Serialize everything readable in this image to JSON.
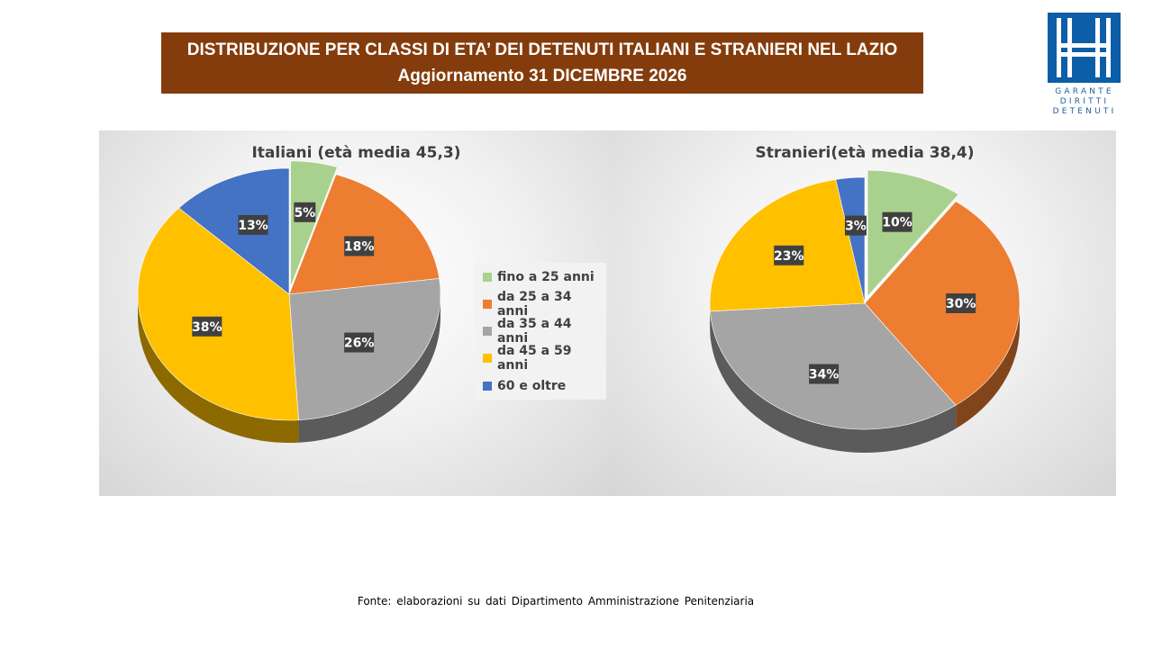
{
  "header": {
    "title_line1": "DISTRIBUZIONE PER CLASSI DI ETA’ DEI DETENUTI ITALIANI E STRANIERI NEL LAZIO",
    "title_line2": "Aggiornamento 31 DICEMBRE 2026"
  },
  "logo": {
    "line1": "GARANTE",
    "line2": "DIRITTI",
    "line3": "DETENUTI",
    "color": "#0d5ea8"
  },
  "colors": {
    "fino a 25 anni": "#a9d18e",
    "da 25 a 34 anni": "#ed7d31",
    "da 35 a 44 anni": "#a5a5a5",
    "da 45 a 59 anni": "#ffc000",
    "60 e oltre": "#4472c4"
  },
  "chart_data": [
    {
      "type": "pie",
      "title": "Italiani (età media 45,3)",
      "categories": [
        "fino a 25 anni",
        "da 25 a 34 anni",
        "da 35 a 44 anni",
        "da 45 a 59 anni",
        "60 e oltre"
      ],
      "values": [
        5,
        18,
        26,
        38,
        13
      ],
      "labels": [
        "5%",
        "18%",
        "26%",
        "38%",
        "13%"
      ],
      "exploded": [
        "fino a 25 anni"
      ],
      "legend_position": "right"
    },
    {
      "type": "pie",
      "title": "Stranieri(età media 38,4)",
      "categories": [
        "fino a 25 anni",
        "da 25 a 34 anni",
        "da 35 a 44 anni",
        "da 45 a 59 anni",
        "60 e oltre"
      ],
      "values": [
        10,
        30,
        34,
        23,
        3
      ],
      "labels": [
        "10%",
        "30%",
        "34%",
        "23%",
        "3%"
      ],
      "exploded": [
        "fino a 25 anni"
      ]
    }
  ],
  "footer": {
    "source": "Fonte: elaborazioni su dati Dipartimento Amministrazione Penitenziaria"
  }
}
